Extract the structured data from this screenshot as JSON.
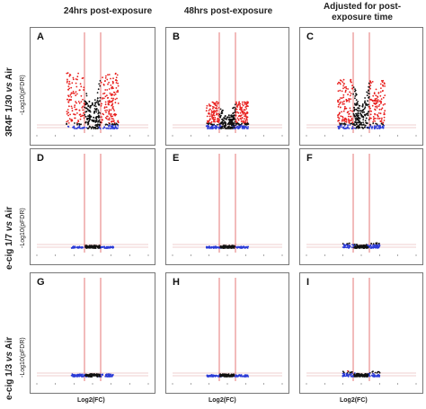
{
  "columns": [
    "24hrs post-exposure",
    "48hrs post-exposure",
    "Adjusted for post-exposure time"
  ],
  "rows": [
    {
      "label": "3R4F 1/30",
      "vs": "vs",
      "air": "Air",
      "ylabel": "-Log10(pFDR)"
    },
    {
      "label": "e-cig  1/7",
      "vs": "vs",
      "air": "Air",
      "ylabel": "-Log10(pFDR)"
    },
    {
      "label": "e-cig  1/3",
      "vs": "vs",
      "air": "Air",
      "ylabel": "-Log10(pFDR)"
    }
  ],
  "xlabel": "Log2(FC)",
  "colors": {
    "up_down": "#e8201f",
    "ns": "#111111",
    "fdr_sig": "#2b3bd6",
    "fc_line": "#e05555",
    "fdr_line": "#e0a0a0"
  },
  "chart_data": [
    {
      "type": "scatter",
      "panel": "A",
      "x_range": [
        -10,
        10
      ],
      "y_extent": 0.62,
      "spread": 1.0,
      "fc_lines": [
        -1,
        1
      ]
    },
    {
      "type": "scatter",
      "panel": "B",
      "x_range": [
        -10,
        10
      ],
      "y_extent": 0.3,
      "spread": 0.8,
      "fc_lines": [
        -1,
        1
      ]
    },
    {
      "type": "scatter",
      "panel": "C",
      "x_range": [
        -10,
        10
      ],
      "y_extent": 0.55,
      "spread": 0.9,
      "fc_lines": [
        -1,
        1
      ]
    },
    {
      "type": "scatter",
      "panel": "D",
      "x_range": [
        -10,
        10
      ],
      "y_extent": 0.02,
      "spread": 0.8,
      "fc_lines": [
        -1,
        1
      ]
    },
    {
      "type": "scatter",
      "panel": "E",
      "x_range": [
        -10,
        10
      ],
      "y_extent": 0.02,
      "spread": 0.8,
      "fc_lines": [
        -1,
        1
      ]
    },
    {
      "type": "scatter",
      "panel": "F",
      "x_range": [
        -10,
        10
      ],
      "y_extent": 0.06,
      "spread": 0.7,
      "fc_lines": [
        -1,
        1
      ]
    },
    {
      "type": "scatter",
      "panel": "G",
      "x_range": [
        -10,
        10
      ],
      "y_extent": 0.03,
      "spread": 0.8,
      "fc_lines": [
        -1,
        1
      ]
    },
    {
      "type": "scatter",
      "panel": "H",
      "x_range": [
        -10,
        10
      ],
      "y_extent": 0.02,
      "spread": 0.8,
      "fc_lines": [
        -1,
        1
      ]
    },
    {
      "type": "scatter",
      "panel": "I",
      "x_range": [
        -10,
        10
      ],
      "y_extent": 0.06,
      "spread": 0.7,
      "fc_lines": [
        -1,
        1
      ]
    }
  ]
}
